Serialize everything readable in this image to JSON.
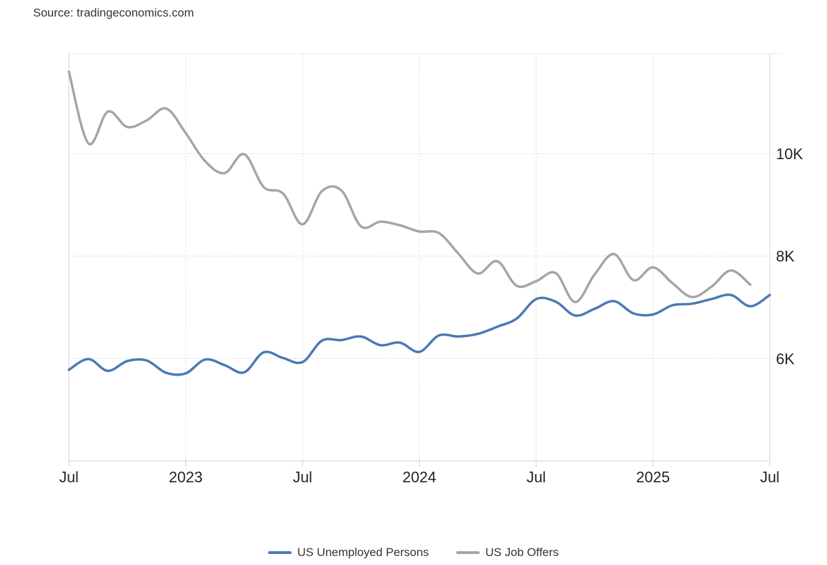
{
  "source_label": "Source: tradingeconomics.com",
  "chart_data": {
    "type": "line",
    "title": "",
    "xlabel": "",
    "ylabel": "",
    "x_range": [
      "2022-07",
      "2025-07"
    ],
    "ylim": [
      4000,
      11950
    ],
    "y_ticks": [
      {
        "value": 6000,
        "label": "6K"
      },
      {
        "value": 8000,
        "label": "8K"
      },
      {
        "value": 10000,
        "label": "10K"
      }
    ],
    "x_ticks": [
      {
        "date": "2022-07",
        "label": "Jul"
      },
      {
        "date": "2023-01",
        "label": "2023"
      },
      {
        "date": "2023-07",
        "label": "Jul"
      },
      {
        "date": "2024-01",
        "label": "2024"
      },
      {
        "date": "2024-07",
        "label": "Jul"
      },
      {
        "date": "2025-01",
        "label": "2025"
      },
      {
        "date": "2025-07",
        "label": "Jul"
      }
    ],
    "grid": true,
    "legend_position": "bottom-center",
    "series": [
      {
        "name": "US Unemployed Persons",
        "color": "#4a78b5",
        "x": [
          "2022-07",
          "2022-08",
          "2022-09",
          "2022-10",
          "2022-11",
          "2022-12",
          "2023-01",
          "2023-02",
          "2023-03",
          "2023-04",
          "2023-05",
          "2023-06",
          "2023-07",
          "2023-08",
          "2023-09",
          "2023-10",
          "2023-11",
          "2023-12",
          "2024-01",
          "2024-02",
          "2024-03",
          "2024-04",
          "2024-05",
          "2024-06",
          "2024-07",
          "2024-08",
          "2024-09",
          "2024-10",
          "2024-11",
          "2024-12",
          "2025-01",
          "2025-02",
          "2025-03",
          "2025-04",
          "2025-05",
          "2025-06",
          "2025-07"
        ],
        "values": [
          5780,
          5990,
          5760,
          5950,
          5960,
          5720,
          5710,
          5980,
          5870,
          5730,
          6120,
          6010,
          5930,
          6350,
          6360,
          6430,
          6260,
          6310,
          6130,
          6450,
          6430,
          6480,
          6620,
          6780,
          7160,
          7110,
          6840,
          6970,
          7120,
          6880,
          6860,
          7040,
          7070,
          7160,
          7240,
          7020,
          7240
        ]
      },
      {
        "name": "US Job Offers",
        "color": "#a5a5a5",
        "x": [
          "2022-07",
          "2022-08",
          "2022-09",
          "2022-10",
          "2022-11",
          "2022-12",
          "2023-01",
          "2023-02",
          "2023-03",
          "2023-04",
          "2023-05",
          "2023-06",
          "2023-07",
          "2023-08",
          "2023-09",
          "2023-10",
          "2023-11",
          "2023-12",
          "2024-01",
          "2024-02",
          "2024-03",
          "2024-04",
          "2024-05",
          "2024-06",
          "2024-07",
          "2024-08",
          "2024-09",
          "2024-10",
          "2024-11",
          "2024-12",
          "2025-01",
          "2025-02",
          "2025-03",
          "2025-04",
          "2025-05",
          "2025-06"
        ],
        "values": [
          11600,
          10200,
          10820,
          10520,
          10650,
          10880,
          10400,
          9850,
          9620,
          9990,
          9350,
          9220,
          8620,
          9270,
          9280,
          8580,
          8670,
          8600,
          8480,
          8450,
          8050,
          7660,
          7900,
          7420,
          7510,
          7670,
          7100,
          7640,
          8040,
          7530,
          7780,
          7470,
          7200,
          7400,
          7720,
          7440
        ]
      }
    ]
  }
}
